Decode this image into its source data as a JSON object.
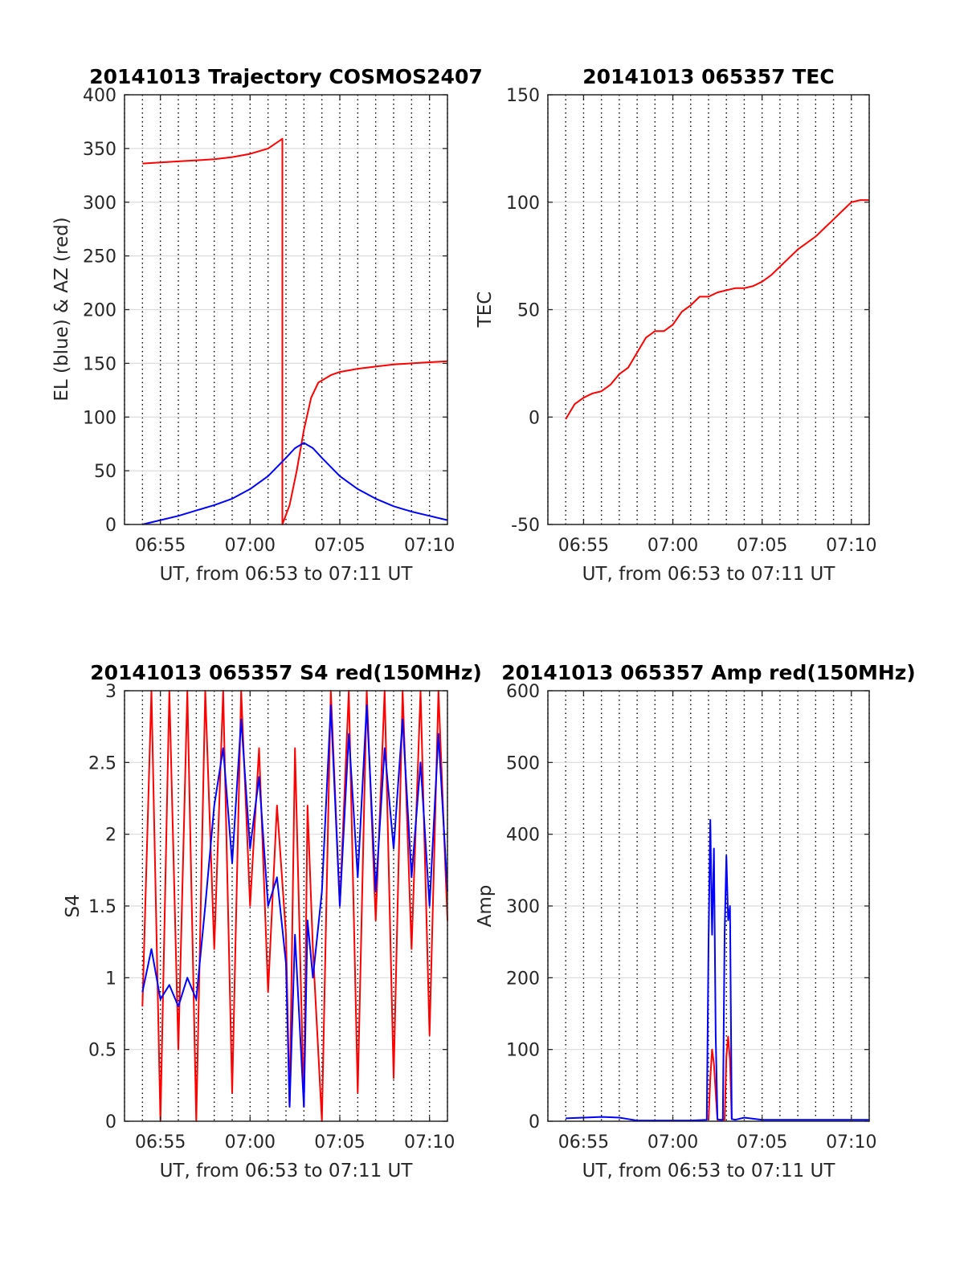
{
  "figure": {
    "background": "#ffffff"
  },
  "chart_data": [
    {
      "type": "line",
      "title": "20141013 Trajectory COSMOS2407",
      "xlabel": "UT, from 06:53 to 07:11 UT",
      "ylabel": "EL (blue) & AZ (red)",
      "xlim": [
        "06:53",
        "07:11"
      ],
      "ylim": [
        0,
        400
      ],
      "xticks": [
        "06:55",
        "07:00",
        "07:05",
        "07:10"
      ],
      "yticks": [
        "0",
        "50",
        "100",
        "150",
        "200",
        "250",
        "300",
        "350",
        "400"
      ],
      "grid": true,
      "series": [
        {
          "color": "#ff0000",
          "x": [
            "06:54",
            "06:55",
            "06:56",
            "06:57",
            "06:58",
            "06:59",
            "07:00",
            "07:01",
            "07:01.8",
            "07:01.8",
            "07:02.2",
            "07:02.6",
            "07:03",
            "07:03.4",
            "07:03.8",
            "07:04.5",
            "07:05",
            "07:06",
            "07:07",
            "07:08",
            "07:09",
            "07:10",
            "07:11"
          ],
          "values": [
            336,
            337,
            338,
            339,
            340,
            342,
            345,
            350,
            359,
            0,
            18,
            50,
            88,
            118,
            132,
            139,
            142,
            145,
            147,
            149,
            150,
            151,
            152
          ]
        },
        {
          "color": "#0000ff",
          "x": [
            "06:54",
            "06:55",
            "06:56",
            "06:57",
            "06:58",
            "06:59",
            "07:00",
            "07:01",
            "07:02",
            "07:02.5",
            "07:03",
            "07:03.5",
            "07:04",
            "07:05",
            "07:06",
            "07:07",
            "07:08",
            "07:09",
            "07:10",
            "07:11"
          ],
          "values": [
            0,
            4,
            8,
            13,
            18,
            24,
            33,
            45,
            62,
            71,
            76,
            71,
            62,
            45,
            33,
            24,
            17,
            12,
            8,
            4
          ]
        }
      ]
    },
    {
      "type": "line",
      "title": "20141013 065357 TEC",
      "xlabel": "UT, from 06:53 to 07:11 UT",
      "ylabel": "TEC",
      "xlim": [
        "06:53",
        "07:11"
      ],
      "ylim": [
        -50,
        150
      ],
      "xticks": [
        "06:55",
        "07:00",
        "07:05",
        "07:10"
      ],
      "yticks": [
        "-50",
        "0",
        "50",
        "100",
        "150"
      ],
      "grid": true,
      "series": [
        {
          "color": "#ff0000",
          "x": [
            "06:54",
            "06:54.5",
            "06:55",
            "06:55.5",
            "06:56",
            "06:56.5",
            "06:57",
            "06:57.5",
            "06:58",
            "06:58.5",
            "06:59",
            "06:59.5",
            "07:00",
            "07:00.5",
            "07:01",
            "07:01.5",
            "07:02",
            "07:02.5",
            "07:03",
            "07:03.5",
            "07:04",
            "07:04.5",
            "07:05",
            "07:05.5",
            "07:06",
            "07:06.5",
            "07:07",
            "07:07.5",
            "07:08",
            "07:08.5",
            "07:09",
            "07:09.5",
            "07:10",
            "07:10.5",
            "07:11"
          ],
          "values": [
            -1,
            6,
            9,
            11,
            12,
            15,
            20,
            23,
            30,
            37,
            40,
            40,
            43,
            49,
            52,
            56,
            56,
            58,
            59,
            60,
            60,
            61,
            63,
            66,
            70,
            74,
            78,
            81,
            84,
            88,
            92,
            96,
            100,
            101,
            101
          ]
        }
      ]
    },
    {
      "type": "line",
      "title": "20141013 065357 S4 red(150MHz)",
      "xlabel": "UT, from 06:53 to 07:11 UT",
      "ylabel": "S4",
      "xlim": [
        "06:53",
        "07:11"
      ],
      "ylim": [
        0,
        3
      ],
      "xticks": [
        "06:55",
        "07:00",
        "07:05",
        "07:10"
      ],
      "yticks": [
        "0",
        "0.5",
        "1",
        "1.5",
        "2",
        "2.5",
        "3"
      ],
      "grid": true,
      "series": [
        {
          "color": "#ff0000",
          "x": [
            "06:54",
            "06:54.5",
            "06:55",
            "06:55.5",
            "06:56",
            "06:56.5",
            "06:57",
            "06:57.5",
            "06:58",
            "06:58.5",
            "06:59",
            "06:59.5",
            "07:00",
            "07:00.5",
            "07:01",
            "07:01.5",
            "07:02",
            "07:02.2",
            "07:02.5",
            "07:03",
            "07:03.2",
            "07:03.5",
            "07:04",
            "07:04.5",
            "07:05",
            "07:05.5",
            "07:06",
            "07:06.5",
            "07:07",
            "07:07.5",
            "07:08",
            "07:08.5",
            "07:09",
            "07:09.5",
            "07:10",
            "07:10.5",
            "07:11"
          ],
          "values": [
            0.8,
            3,
            0,
            3,
            0.5,
            3,
            0,
            3,
            1.2,
            3,
            0.2,
            3,
            1.5,
            2.6,
            0.9,
            2.2,
            1.3,
            0.1,
            2.6,
            0.1,
            2.2,
            1.2,
            0,
            3,
            1.5,
            3,
            0.2,
            3,
            1.4,
            3,
            0.3,
            3,
            1.2,
            3,
            0.6,
            3,
            1.4
          ]
        },
        {
          "color": "#0000ff",
          "x": [
            "06:54",
            "06:54.5",
            "06:55",
            "06:55.5",
            "06:56",
            "06:56.5",
            "06:57",
            "06:57.5",
            "06:58",
            "06:58.5",
            "06:59",
            "06:59.5",
            "07:00",
            "07:00.5",
            "07:01",
            "07:01.5",
            "07:02",
            "07:02.2",
            "07:02.5",
            "07:03",
            "07:03.2",
            "07:03.5",
            "07:04",
            "07:04.5",
            "07:05",
            "07:05.5",
            "07:06",
            "07:06.5",
            "07:07",
            "07:07.5",
            "07:08",
            "07:08.5",
            "07:09",
            "07:09.5",
            "07:10",
            "07:10.5",
            "07:11"
          ],
          "values": [
            0.9,
            1.2,
            0.85,
            0.95,
            0.8,
            1.0,
            0.85,
            1.5,
            2.2,
            2.6,
            1.8,
            2.8,
            1.9,
            2.4,
            1.5,
            1.7,
            1.1,
            0.1,
            1.3,
            0.1,
            1.4,
            1.0,
            1.6,
            2.9,
            1.5,
            2.7,
            1.7,
            2.9,
            1.6,
            2.6,
            1.9,
            2.8,
            1.7,
            2.5,
            1.5,
            2.7,
            1.6
          ]
        }
      ]
    },
    {
      "type": "line",
      "title": "20141013 065357 Amp red(150MHz)",
      "xlabel": "UT, from 06:53 to 07:11 UT",
      "ylabel": "Amp",
      "xlim": [
        "06:53",
        "07:11"
      ],
      "ylim": [
        0,
        600
      ],
      "xticks": [
        "06:55",
        "07:00",
        "07:05",
        "07:10"
      ],
      "yticks": [
        "0",
        "100",
        "200",
        "300",
        "400",
        "500",
        "600"
      ],
      "grid": true,
      "series": [
        {
          "color": "#ff0000",
          "x": [
            "07:02",
            "07:02.1",
            "07:02.2",
            "07:02.3",
            "07:02.4",
            "07:02.5",
            "07:02.9",
            "07:03",
            "07:03.1",
            "07:03.2",
            "07:03.3"
          ],
          "values": [
            2,
            60,
            100,
            80,
            40,
            2,
            2,
            90,
            118,
            85,
            2
          ]
        },
        {
          "color": "#0000ff",
          "x": [
            "06:54",
            "06:55",
            "06:56",
            "06:57",
            "06:57.5",
            "06:58",
            "06:59",
            "07:00",
            "07:01",
            "07:01.9",
            "07:02",
            "07:02.1",
            "07:02.2",
            "07:02.3",
            "07:02.4",
            "07:02.5",
            "07:02.6",
            "07:02.8",
            "07:02.9",
            "07:03",
            "07:03.1",
            "07:03.2",
            "07:03.3",
            "07:03.5",
            "07:04",
            "07:05",
            "07:06",
            "07:07",
            "07:08",
            "07:09",
            "07:10",
            "07:11"
          ],
          "values": [
            4,
            5,
            6,
            5,
            3,
            1,
            1,
            1,
            1,
            2,
            250,
            420,
            260,
            380,
            120,
            3,
            2,
            2,
            260,
            370,
            280,
            300,
            3,
            2,
            5,
            2,
            2,
            2,
            2,
            2,
            2,
            2
          ]
        }
      ]
    }
  ]
}
